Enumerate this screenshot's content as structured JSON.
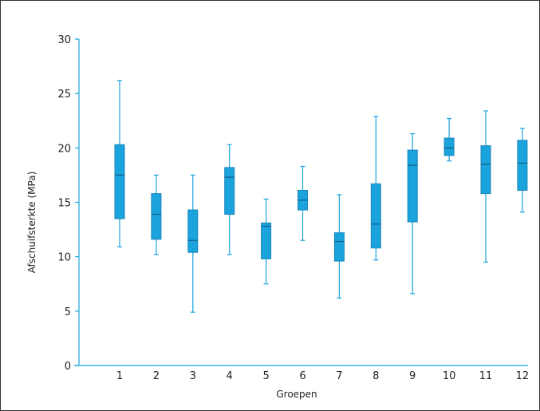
{
  "chart_data": {
    "type": "boxplot",
    "title": "",
    "xlabel": "Groepen",
    "ylabel": "Afschuifsterkte (MPa)",
    "ylim": [
      0,
      30
    ],
    "yticks": [
      "0",
      "5",
      "10",
      "15",
      "20",
      "25",
      "30"
    ],
    "categories": [
      "1",
      "2",
      "3",
      "4",
      "5",
      "6",
      "7",
      "8",
      "9",
      "10",
      "11",
      "12"
    ],
    "boxes": [
      {
        "min": 10.9,
        "q1": 13.5,
        "median": 17.5,
        "q3": 20.3,
        "max": 26.2
      },
      {
        "min": 10.2,
        "q1": 11.6,
        "median": 13.9,
        "q3": 15.8,
        "max": 17.5
      },
      {
        "min": 4.9,
        "q1": 10.4,
        "median": 11.5,
        "q3": 14.3,
        "max": 17.5
      },
      {
        "min": 10.2,
        "q1": 13.9,
        "median": 17.3,
        "q3": 18.2,
        "max": 20.3
      },
      {
        "min": 7.5,
        "q1": 9.8,
        "median": 12.8,
        "q3": 13.1,
        "max": 15.3
      },
      {
        "min": 11.5,
        "q1": 14.3,
        "median": 15.2,
        "q3": 16.1,
        "max": 18.3
      },
      {
        "min": 6.2,
        "q1": 9.6,
        "median": 11.4,
        "q3": 12.2,
        "max": 15.7
      },
      {
        "min": 9.7,
        "q1": 10.8,
        "median": 13.0,
        "q3": 16.7,
        "max": 22.9
      },
      {
        "min": 6.6,
        "q1": 13.2,
        "median": 18.4,
        "q3": 19.8,
        "max": 21.3
      },
      {
        "min": 18.8,
        "q1": 19.3,
        "median": 20.0,
        "q3": 20.9,
        "max": 22.7
      },
      {
        "min": 9.5,
        "q1": 15.8,
        "median": 18.5,
        "q3": 20.2,
        "max": 23.4
      },
      {
        "min": 14.1,
        "q1": 16.1,
        "median": 18.6,
        "q3": 20.7,
        "max": 21.8
      }
    ],
    "box_color": "#1ba3dd",
    "box_stroke": "#1a86b9",
    "grid": false,
    "legend": "none"
  }
}
